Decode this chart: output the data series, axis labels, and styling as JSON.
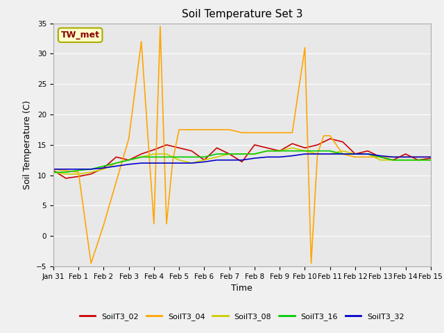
{
  "title": "Soil Temperature Set 3",
  "xlabel": "Time",
  "ylabel": "Soil Temperature (C)",
  "ylim": [
    -5,
    35
  ],
  "background_color": "#e8e8e8",
  "fig_background": "#f0f0f0",
  "annotation_label": "TW_met",
  "annotation_color": "#8b0000",
  "annotation_bg": "#ffffcc",
  "annotation_edge": "#aaaa00",
  "legend_entries": [
    "SoilT3_02",
    "SoilT3_04",
    "SoilT3_08",
    "SoilT3_16",
    "SoilT3_32"
  ],
  "line_colors": [
    "#cc0000",
    "#ffa500",
    "#cccc00",
    "#00cc00",
    "#0000cc"
  ],
  "xtick_labels": [
    "Jan 31",
    "Feb 1",
    "Feb 2",
    "Feb 3",
    "Feb 4",
    "Feb 5",
    "Feb 6",
    "Feb 7",
    "Feb 8",
    "Feb 9",
    "Feb 10",
    "Feb 11",
    "Feb 12",
    "Feb 13",
    "Feb 14",
    "Feb 15"
  ],
  "yticks": [
    -5,
    0,
    5,
    10,
    15,
    20,
    25,
    30,
    35
  ],
  "SoilT3_02_x": [
    0,
    0.5,
    1,
    1.5,
    2,
    2.5,
    3,
    3.5,
    4,
    4.5,
    5,
    5.5,
    6,
    6.5,
    7,
    7.5,
    8,
    8.5,
    9,
    9.5,
    10,
    10.5,
    11,
    11.5,
    12,
    12.5,
    13,
    13.5,
    14,
    14.5,
    15
  ],
  "SoilT3_02_y": [
    10.8,
    9.5,
    9.8,
    10.2,
    11.2,
    13.0,
    12.5,
    13.5,
    14.2,
    15.0,
    14.5,
    14.0,
    12.5,
    14.5,
    13.5,
    12.2,
    15.0,
    14.5,
    14.0,
    15.2,
    14.5,
    15.0,
    16.0,
    15.5,
    13.5,
    14.0,
    13.0,
    12.5,
    13.5,
    12.5,
    12.8
  ],
  "SoilT3_04_x": [
    0,
    1,
    1.5,
    2,
    3,
    3.5,
    4,
    4.25,
    4.5,
    4.75,
    5,
    5.5,
    6,
    6.5,
    7,
    7.5,
    8,
    8.5,
    9,
    9.5,
    10,
    10.25,
    10.5,
    10.75,
    11,
    11.5,
    12,
    12.5,
    13,
    13.5,
    14,
    14.5,
    15
  ],
  "SoilT3_04_y": [
    11.0,
    10.5,
    -4.5,
    1.8,
    16.0,
    32.0,
    2.0,
    34.5,
    2.0,
    12.5,
    17.5,
    17.5,
    17.5,
    17.5,
    17.5,
    17.0,
    17.0,
    17.0,
    17.0,
    17.0,
    31.0,
    -4.5,
    13.5,
    16.5,
    16.5,
    13.5,
    13.0,
    13.0,
    13.0,
    13.0,
    13.0,
    13.0,
    13.0
  ],
  "SoilT3_08_x": [
    0,
    0.5,
    1,
    1.5,
    2,
    2.5,
    3,
    3.5,
    4,
    4.5,
    5,
    5.5,
    6,
    6.5,
    7,
    7.5,
    8,
    8.5,
    9,
    9.5,
    10,
    10.5,
    11,
    11.5,
    12,
    12.5,
    13,
    13.5,
    14,
    14.5,
    15
  ],
  "SoilT3_08_y": [
    10.5,
    10.2,
    10.2,
    10.5,
    11.0,
    12.0,
    12.5,
    13.0,
    13.5,
    13.5,
    12.5,
    12.0,
    12.5,
    13.0,
    13.5,
    13.5,
    13.5,
    14.0,
    14.0,
    14.5,
    14.0,
    13.5,
    13.5,
    14.0,
    13.5,
    13.5,
    12.5,
    12.5,
    12.5,
    12.5,
    12.5
  ],
  "SoilT3_16_x": [
    0,
    0.5,
    1,
    1.5,
    2,
    2.5,
    3,
    3.5,
    4,
    4.5,
    5,
    5.5,
    6,
    6.5,
    7,
    7.5,
    8,
    8.5,
    9,
    9.5,
    10,
    10.5,
    11,
    11.5,
    12,
    12.5,
    13,
    13.5,
    14,
    14.5,
    15
  ],
  "SoilT3_16_y": [
    10.5,
    10.5,
    10.8,
    11.0,
    11.5,
    12.0,
    12.5,
    13.0,
    13.0,
    13.0,
    13.0,
    13.0,
    13.0,
    13.5,
    13.5,
    13.5,
    13.5,
    14.0,
    14.0,
    14.0,
    14.0,
    14.0,
    14.0,
    13.5,
    13.5,
    13.5,
    13.0,
    12.5,
    12.5,
    12.5,
    12.5
  ],
  "SoilT3_32_x": [
    0,
    0.5,
    1,
    1.5,
    2,
    2.5,
    3,
    3.5,
    4,
    4.5,
    5,
    5.5,
    6,
    6.5,
    7,
    7.5,
    8,
    8.5,
    9,
    9.5,
    10,
    10.5,
    11,
    11.5,
    12,
    12.5,
    13,
    13.5,
    14,
    14.5,
    15
  ],
  "SoilT3_32_y": [
    11.0,
    11.0,
    11.0,
    11.0,
    11.2,
    11.5,
    11.8,
    12.0,
    12.0,
    12.0,
    12.0,
    12.0,
    12.2,
    12.5,
    12.5,
    12.5,
    12.8,
    13.0,
    13.0,
    13.2,
    13.5,
    13.5,
    13.5,
    13.5,
    13.5,
    13.5,
    13.2,
    13.0,
    13.0,
    13.0,
    13.0
  ]
}
